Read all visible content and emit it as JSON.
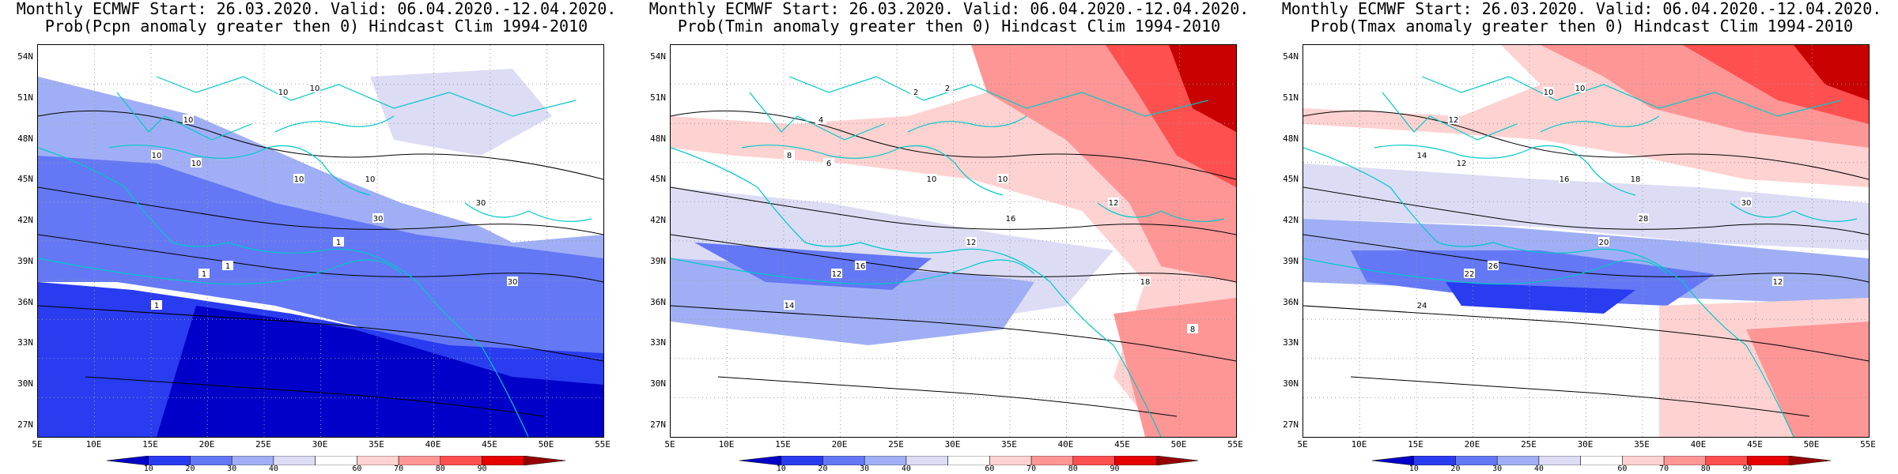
{
  "panels": [
    {
      "title_line1": "Monthly ECMWF Start: 26.03.2020. Valid: 06.04.2020.-12.04.2020.",
      "title_line2": "Prob(Pcpn anomaly greater then 0) Hindcast Clim 1994-2010",
      "variable": "Pcpn",
      "dominant_tone": "blue",
      "contour_labels": [
        "10",
        "10",
        "10",
        "10",
        "10",
        "10",
        "10",
        "1",
        "1",
        "1",
        "1",
        "30",
        "30",
        "30"
      ]
    },
    {
      "title_line1": "Monthly ECMWF Start: 26.03.2020. Valid: 06.04.2020.-12.04.2020.",
      "title_line2": "Prob(Tmin anomaly greater then 0) Hindcast Clim 1994-2010",
      "variable": "Tmin",
      "dominant_tone": "mixed",
      "contour_labels": [
        "2",
        "2",
        "4",
        "6",
        "8",
        "10",
        "10",
        "12",
        "12",
        "14",
        "16",
        "16",
        "12",
        "18",
        "8"
      ]
    },
    {
      "title_line1": "Monthly ECMWF Start: 26.03.2020. Valid: 06.04.2020.-12.04.2020.",
      "title_line2": "Prob(Tmax anomaly greater then 0) Hindcast Clim 1994-2010",
      "variable": "Tmax",
      "dominant_tone": "red-north-blue-south",
      "contour_labels": [
        "10",
        "10",
        "12",
        "12",
        "14",
        "16",
        "18",
        "20",
        "22",
        "24",
        "26",
        "28",
        "30",
        "12"
      ]
    }
  ],
  "lat_labels": [
    "54N",
    "51N",
    "48N",
    "45N",
    "42N",
    "39N",
    "36N",
    "33N",
    "30N",
    "27N"
  ],
  "lon_labels": [
    "5E",
    "10E",
    "15E",
    "20E",
    "25E",
    "30E",
    "35E",
    "40E",
    "45E",
    "50E",
    "55E"
  ],
  "colorbar": {
    "labels": [
      "10",
      "20",
      "30",
      "40",
      "60",
      "70",
      "80",
      "90"
    ],
    "colors": [
      "#0000c8",
      "#2a3cf0",
      "#6478f5",
      "#a0aff5",
      "#dcdcf5",
      "#ffffff",
      "#ffd2d2",
      "#ff9696",
      "#ff5050",
      "#e60000",
      "#960000"
    ]
  }
}
